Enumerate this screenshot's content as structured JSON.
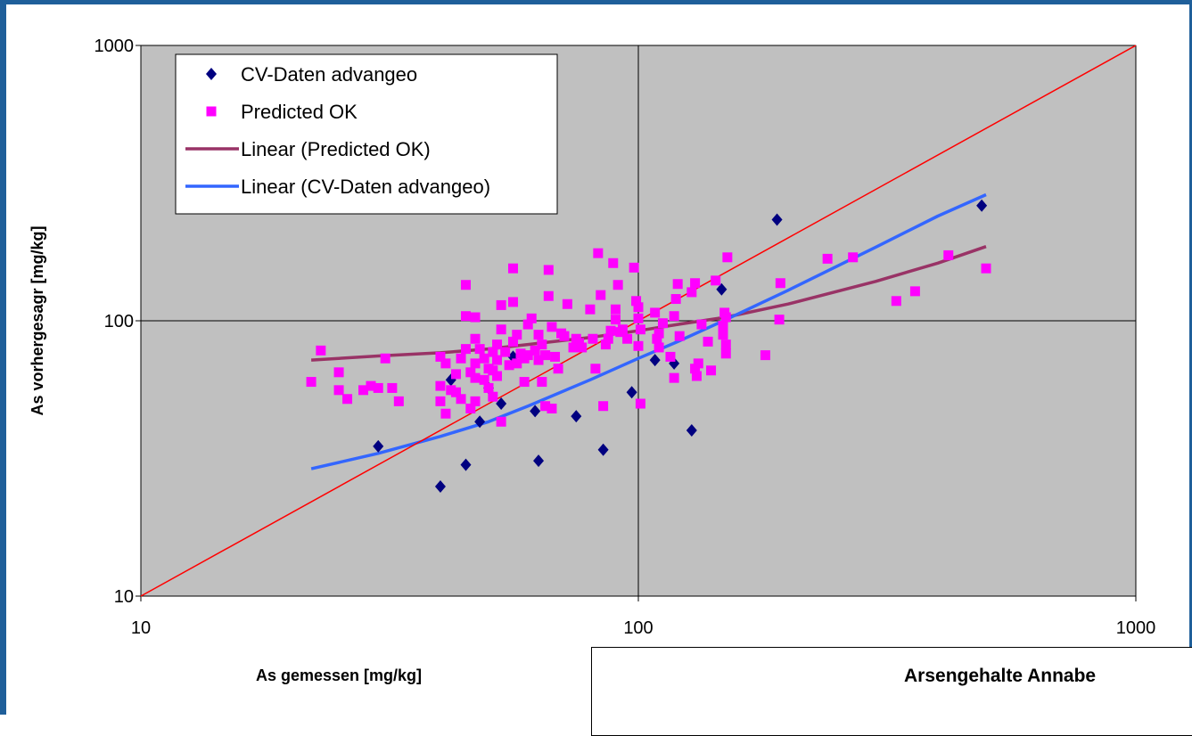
{
  "chart_data": {
    "type": "scatter",
    "title": "",
    "xlabel": "As gemessen [mg/kg]",
    "ylabel": "As vorhergesagr [mg/kg]",
    "x_scale": "log",
    "y_scale": "log",
    "xlim": [
      10,
      1000
    ],
    "ylim": [
      10,
      1000
    ],
    "x_ticks": [
      10,
      100,
      1000
    ],
    "y_ticks": [
      10,
      100,
      1000
    ],
    "x_tick_labels": [
      "10",
      "100",
      "1000"
    ],
    "y_tick_labels": [
      "10",
      "100",
      "1000"
    ],
    "grid": true,
    "plot_background": "#c0c0c0",
    "legend_position": "top-left",
    "series": [
      {
        "name": "CV-Daten advangeo",
        "kind": "scatter",
        "marker": "diamond",
        "color": "#000080",
        "points": [
          [
            30,
            35
          ],
          [
            40,
            25
          ],
          [
            42,
            61
          ],
          [
            45,
            30
          ],
          [
            48,
            43
          ],
          [
            50,
            57
          ],
          [
            53,
            50
          ],
          [
            56,
            74
          ],
          [
            62,
            47
          ],
          [
            63,
            31
          ],
          [
            75,
            45
          ],
          [
            85,
            34
          ],
          [
            97,
            55
          ],
          [
            108,
            72
          ],
          [
            118,
            70
          ],
          [
            128,
            40
          ],
          [
            147,
            130
          ],
          [
            190,
            233
          ],
          [
            490,
            262
          ]
        ]
      },
      {
        "name": "Predicted OK",
        "kind": "scatter",
        "marker": "square",
        "color": "#ff00ff",
        "points": [
          [
            22,
            60
          ],
          [
            23,
            78
          ],
          [
            25,
            65
          ],
          [
            25,
            56
          ],
          [
            26,
            52
          ],
          [
            28,
            56
          ],
          [
            29,
            58
          ],
          [
            30,
            57
          ],
          [
            31,
            73
          ],
          [
            32,
            57
          ],
          [
            33,
            51
          ],
          [
            40,
            74
          ],
          [
            40,
            58
          ],
          [
            40,
            51
          ],
          [
            41,
            46
          ],
          [
            41,
            70
          ],
          [
            42,
            56
          ],
          [
            43,
            55
          ],
          [
            43,
            64
          ],
          [
            44,
            52
          ],
          [
            44,
            73
          ],
          [
            45,
            135
          ],
          [
            45,
            104
          ],
          [
            45,
            79
          ],
          [
            46,
            65
          ],
          [
            46,
            48
          ],
          [
            47,
            51
          ],
          [
            47,
            103
          ],
          [
            47,
            86
          ],
          [
            47,
            70
          ],
          [
            47,
            62
          ],
          [
            48,
            79
          ],
          [
            49,
            61
          ],
          [
            49,
            73
          ],
          [
            50,
            57
          ],
          [
            50,
            67
          ],
          [
            51,
            53
          ],
          [
            51,
            77
          ],
          [
            51,
            66
          ],
          [
            52,
            82
          ],
          [
            52,
            72
          ],
          [
            52,
            63
          ],
          [
            53,
            43
          ],
          [
            53,
            114
          ],
          [
            53,
            93
          ],
          [
            54,
            77
          ],
          [
            55,
            69
          ],
          [
            56,
            84
          ],
          [
            56,
            117
          ],
          [
            56,
            155
          ],
          [
            57,
            89
          ],
          [
            57,
            70
          ],
          [
            58,
            76
          ],
          [
            59,
            73
          ],
          [
            59,
            60
          ],
          [
            60,
            97
          ],
          [
            60,
            75
          ],
          [
            61,
            102
          ],
          [
            62,
            78
          ],
          [
            63,
            89
          ],
          [
            63,
            72
          ],
          [
            64,
            82
          ],
          [
            64,
            60
          ],
          [
            65,
            75
          ],
          [
            65,
            49
          ],
          [
            66,
            153
          ],
          [
            66,
            123
          ],
          [
            67,
            95
          ],
          [
            67,
            48
          ],
          [
            68,
            74
          ],
          [
            69,
            67
          ],
          [
            70,
            90
          ],
          [
            71,
            88
          ],
          [
            72,
            115
          ],
          [
            74,
            80
          ],
          [
            75,
            86
          ],
          [
            76,
            83
          ],
          [
            77,
            80
          ],
          [
            80,
            110
          ],
          [
            81,
            86
          ],
          [
            82,
            67
          ],
          [
            83,
            176
          ],
          [
            84,
            124
          ],
          [
            85,
            49
          ],
          [
            86,
            82
          ],
          [
            87,
            86
          ],
          [
            88,
            92
          ],
          [
            89,
            162
          ],
          [
            90,
            101
          ],
          [
            90,
            110
          ],
          [
            91,
            135
          ],
          [
            92,
            91
          ],
          [
            93,
            93
          ],
          [
            95,
            86
          ],
          [
            98,
            156
          ],
          [
            99,
            118
          ],
          [
            100,
            102
          ],
          [
            100,
            112
          ],
          [
            100,
            81
          ],
          [
            101,
            93
          ],
          [
            101,
            50
          ],
          [
            108,
            107
          ],
          [
            109,
            86
          ],
          [
            110,
            80
          ],
          [
            110,
            90
          ],
          [
            112,
            98
          ],
          [
            116,
            74
          ],
          [
            118,
            62
          ],
          [
            118,
            104
          ],
          [
            119,
            120
          ],
          [
            120,
            136
          ],
          [
            121,
            88
          ],
          [
            128,
            127
          ],
          [
            130,
            137
          ],
          [
            130,
            67
          ],
          [
            131,
            63
          ],
          [
            132,
            70
          ],
          [
            134,
            97
          ],
          [
            138,
            84
          ],
          [
            140,
            66
          ],
          [
            143,
            140
          ],
          [
            148,
            96
          ],
          [
            148,
            89
          ],
          [
            149,
            107
          ],
          [
            150,
            103
          ],
          [
            150,
            82
          ],
          [
            150,
            76
          ],
          [
            151,
            170
          ],
          [
            180,
            75
          ],
          [
            192,
            101
          ],
          [
            193,
            137
          ],
          [
            240,
            168
          ],
          [
            270,
            170
          ],
          [
            330,
            118
          ],
          [
            360,
            128
          ],
          [
            420,
            173
          ],
          [
            500,
            155
          ]
        ]
      },
      {
        "name": "Linear (Predicted OK)",
        "kind": "line",
        "color": "#993366",
        "x": [
          22,
          30,
          40,
          50,
          60,
          80,
          100,
          120,
          150,
          200,
          300,
          400,
          500
        ],
        "y": [
          72,
          74.5,
          76.5,
          79,
          82,
          87,
          92,
          97,
          103,
          115,
          139,
          162,
          186
        ]
      },
      {
        "name": "Linear (CV-Daten advangeo)",
        "kind": "line",
        "color": "#3366ff",
        "x": [
          22,
          30,
          40,
          50,
          60,
          80,
          100,
          120,
          150,
          200,
          300,
          400,
          500
        ],
        "y": [
          29,
          33,
          38,
          43,
          49,
          61,
          73,
          84,
          101,
          129,
          185,
          240,
          287
        ]
      },
      {
        "name": "",
        "kind": "line",
        "color": "#ff0000",
        "x": [
          10,
          1000
        ],
        "y": [
          10,
          1000
        ]
      }
    ]
  },
  "subchart": {
    "title": "Arsengehalte Annabe"
  }
}
